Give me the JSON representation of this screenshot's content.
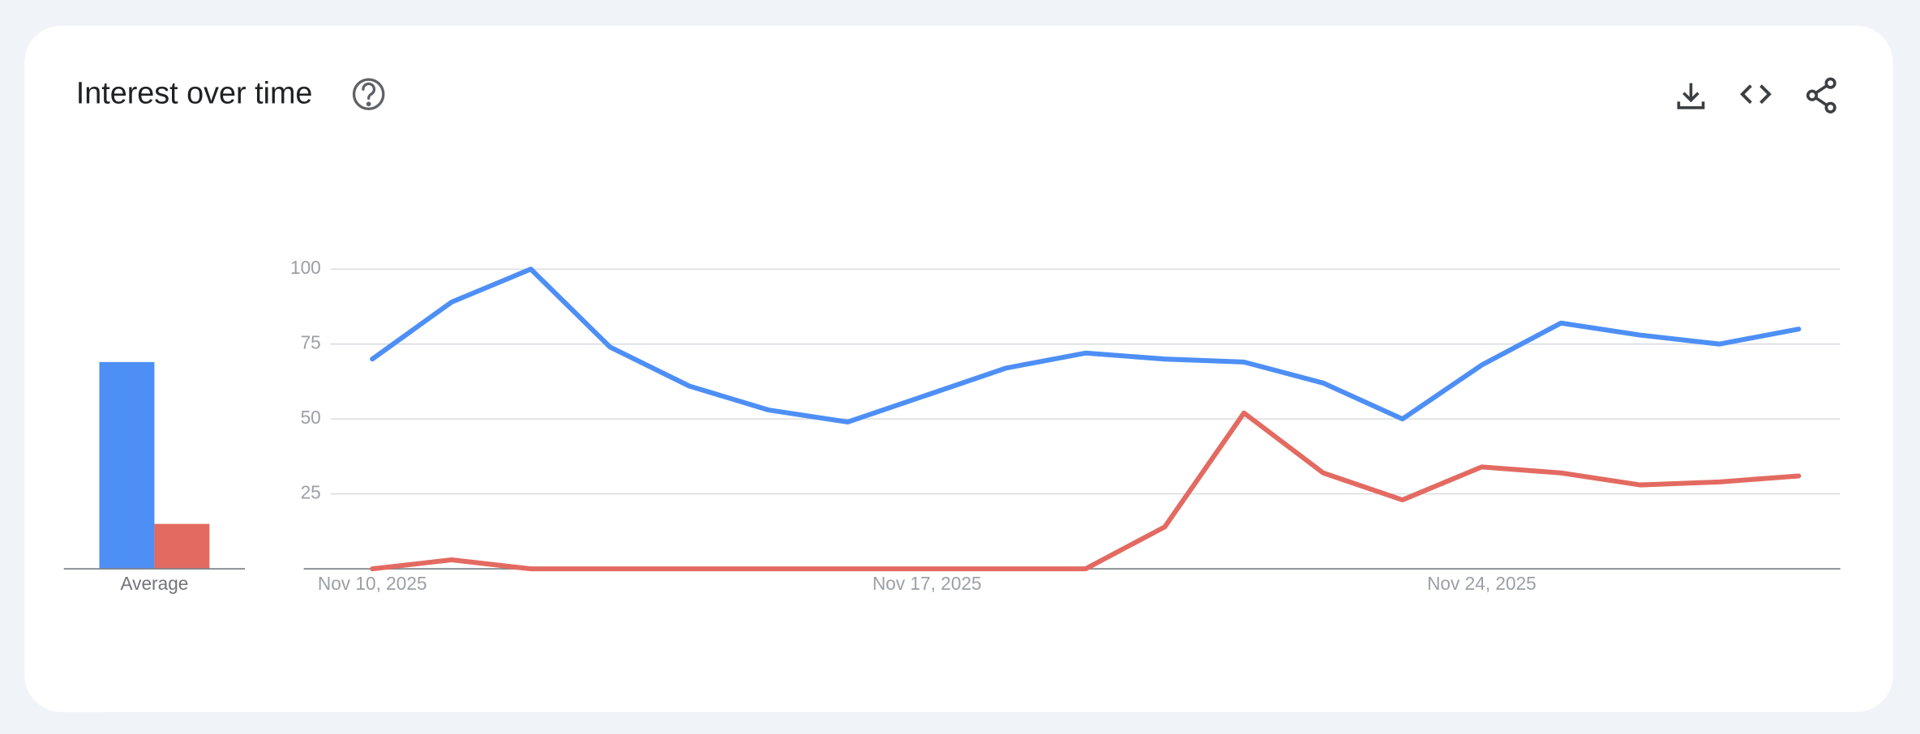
{
  "chart_data": {
    "type": "line",
    "title": "Interest over time",
    "x": [
      "2025-11-10",
      "2025-11-11",
      "2025-11-12",
      "2025-11-13",
      "2025-11-14",
      "2025-11-15",
      "2025-11-16",
      "2025-11-17",
      "2025-11-18",
      "2025-11-19",
      "2025-11-20",
      "2025-11-21",
      "2025-11-22",
      "2025-11-23",
      "2025-11-24",
      "2025-11-25",
      "2025-11-26",
      "2025-11-27",
      "2025-11-28"
    ],
    "series": [
      {
        "color": "#4e8ff6",
        "values": [
          70,
          89,
          100,
          74,
          61,
          53,
          49,
          58,
          67,
          72,
          70,
          69,
          62,
          50,
          68,
          82,
          78,
          75,
          80
        ]
      },
      {
        "color": "#e36a61",
        "values": [
          0,
          3,
          0,
          0,
          0,
          0,
          0,
          0,
          0,
          0,
          14,
          52,
          32,
          23,
          34,
          32,
          28,
          29,
          31
        ]
      }
    ],
    "averages": {
      "label": "Average",
      "values": [
        69,
        15
      ]
    },
    "ylim": [
      0,
      100
    ],
    "yticks": [
      25,
      50,
      75,
      100
    ],
    "xticks": [
      {
        "value": "2025-11-10",
        "label": "Nov 10, 2025"
      },
      {
        "value": "2025-11-17",
        "label": "Nov 17, 2025"
      },
      {
        "value": "2025-11-24",
        "label": "Nov 24, 2025"
      }
    ],
    "grid": true
  }
}
